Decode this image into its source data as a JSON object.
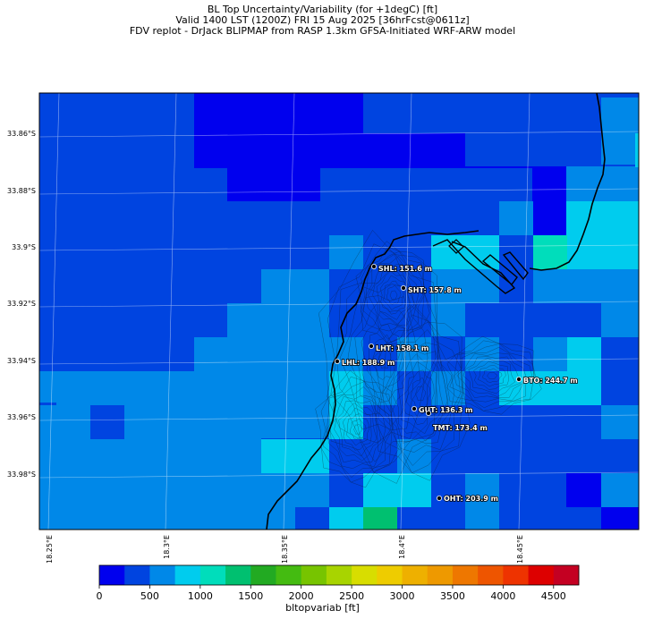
{
  "title": {
    "line1": "BL Top Uncertainty/Variability (for +1degC) [ft]",
    "line2": "Valid 1400 LST (1200Z) FRI 15 Aug 2025 [36hrFcst@0611z]",
    "line3": "FDV replot - DrJack BLIPMAP from RASP 1.3km GFSA-Initiated WRF-ARW model"
  },
  "lat_labels": [
    "33.86°S",
    "33.88°S",
    "33.9°S",
    "33.92°S",
    "33.94°S",
    "33.96°S",
    "33.98°S"
  ],
  "lon_labels": [
    "18.25°E",
    "18.3°E",
    "18.35°E",
    "18.4°E",
    "18.45°E"
  ],
  "colorbar": {
    "label": "bltopvariab [ft]",
    "ticks": [
      "0",
      "500",
      "1000",
      "1500",
      "2000",
      "2500",
      "3000",
      "3500",
      "4000",
      "4500"
    ],
    "colors": [
      "#0000ee",
      "#0044e0",
      "#0088e8",
      "#00ccee",
      "#00ddbb",
      "#00c070",
      "#22aa22",
      "#44bb11",
      "#77c400",
      "#a8d400",
      "#d8dd00",
      "#eecc00",
      "#eeb000",
      "#ee9900",
      "#ee7700",
      "#ee5500",
      "#ee3300",
      "#dd0000",
      "#c40022"
    ]
  },
  "sites": [
    {
      "label": "SHL: 151.6 m"
    },
    {
      "label": "SHT: 157.8 m"
    },
    {
      "label": "LHT: 158.1 m"
    },
    {
      "label": "LHL: 188.9 m"
    },
    {
      "label": "BTO: 244.7 m"
    },
    {
      "label": "GUT: 136.3 m"
    },
    {
      "label": "TMT: 173.4 m"
    },
    {
      "label": "OHT: 203.9 m"
    }
  ]
}
